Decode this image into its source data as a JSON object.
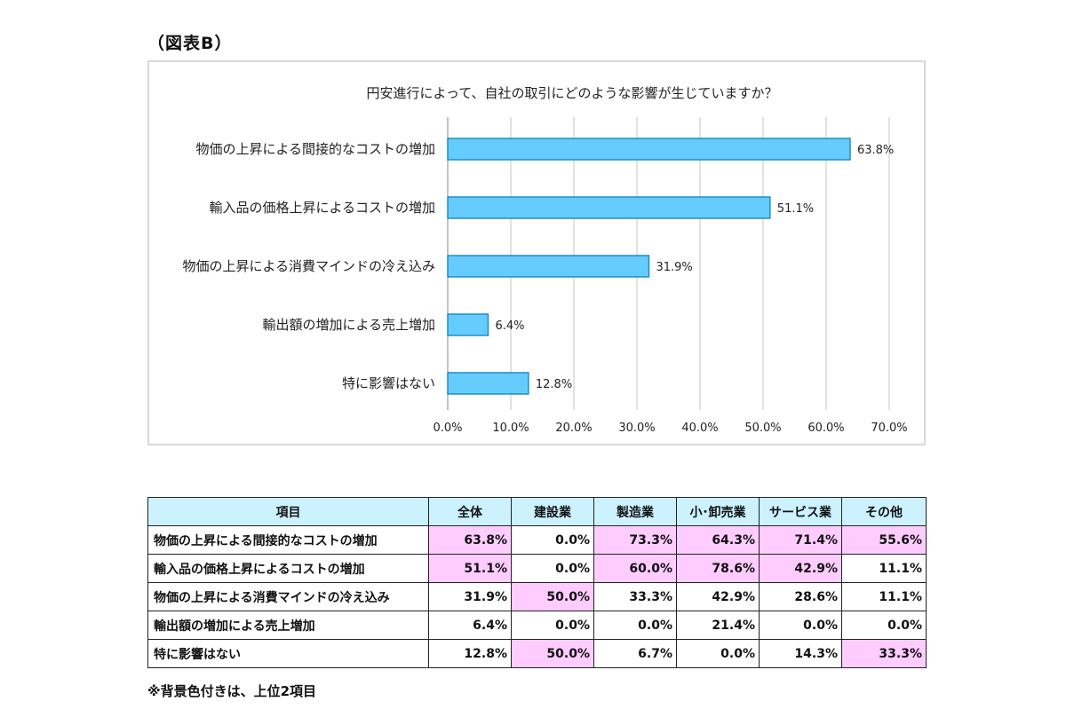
{
  "heading": "（図表B）",
  "chart_data": {
    "type": "bar",
    "orientation": "horizontal",
    "title": "円安進行によって、自社の取引にどのような影響が生じていますか？",
    "categories": [
      "物価の上昇による間接的なコストの増加",
      "輸入品の価格上昇によるコストの増加",
      "物価の上昇による消費マインドの冷え込み",
      "輸出額の増加による売上増加",
      "特に影響はない"
    ],
    "values": [
      63.8,
      51.1,
      31.9,
      6.4,
      12.8
    ],
    "value_labels": [
      "63.8%",
      "51.1%",
      "31.9%",
      "6.4%",
      "12.8%"
    ],
    "xlim": [
      0,
      70
    ],
    "ticks": [
      0,
      10,
      20,
      30,
      40,
      50,
      60,
      70
    ],
    "tick_labels": [
      "0.0%",
      "10.0%",
      "20.0%",
      "30.0%",
      "40.0%",
      "50.0%",
      "60.0%",
      "70.0%"
    ],
    "grid": true,
    "bar_color": "#66ccff",
    "bar_edge_color": "#1a8fc9"
  },
  "table": {
    "headers": [
      "項目",
      "全体",
      "建設業",
      "製造業",
      "小･卸売業",
      "サービス業",
      "その他"
    ],
    "header_bg": "#ccf2ff",
    "highlight_color": "#ffccff",
    "rows": [
      {
        "item": "物価の上昇による間接的なコストの増加",
        "values": [
          "63.8%",
          "0.0%",
          "73.3%",
          "64.3%",
          "71.4%",
          "55.6%"
        ],
        "highlight": [
          true,
          false,
          true,
          true,
          true,
          true
        ]
      },
      {
        "item": "輸入品の価格上昇によるコストの増加",
        "values": [
          "51.1%",
          "0.0%",
          "60.0%",
          "78.6%",
          "42.9%",
          "11.1%"
        ],
        "highlight": [
          true,
          false,
          true,
          true,
          true,
          false
        ]
      },
      {
        "item": "物価の上昇による消費マインドの冷え込み",
        "values": [
          "31.9%",
          "50.0%",
          "33.3%",
          "42.9%",
          "28.6%",
          "11.1%"
        ],
        "highlight": [
          false,
          true,
          false,
          false,
          false,
          false
        ]
      },
      {
        "item": "輸出額の増加による売上増加",
        "values": [
          "6.4%",
          "0.0%",
          "0.0%",
          "21.4%",
          "0.0%",
          "0.0%"
        ],
        "highlight": [
          false,
          false,
          false,
          false,
          false,
          false
        ]
      },
      {
        "item": "特に影響はない",
        "values": [
          "12.8%",
          "50.0%",
          "6.7%",
          "0.0%",
          "14.3%",
          "33.3%"
        ],
        "highlight": [
          false,
          true,
          false,
          false,
          false,
          true
        ]
      }
    ]
  },
  "note": "※背景色付きは、上位2項目"
}
